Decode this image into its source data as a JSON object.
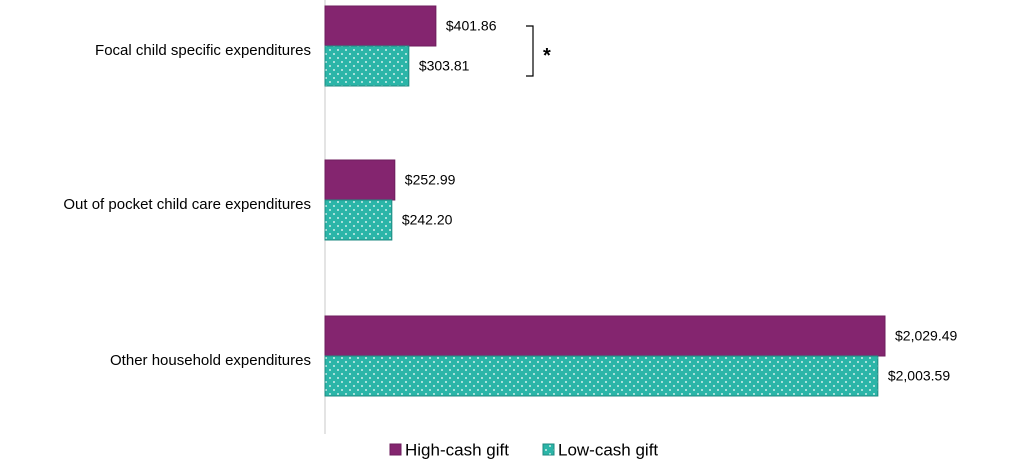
{
  "chart_data": {
    "type": "bar",
    "orientation": "horizontal",
    "categories": [
      "Focal child specific expenditures",
      "Out of pocket child care expenditures",
      "Other household expenditures"
    ],
    "series": [
      {
        "name": "High-cash gift",
        "color": "#84256f",
        "pattern": "solid",
        "values": [
          401.86,
          252.99,
          2029.49
        ],
        "labels": [
          "$401.86",
          "$252.99",
          "$2,029.49"
        ]
      },
      {
        "name": "Low-cash gift",
        "color": "#2bb5a8",
        "pattern": "dotted",
        "values": [
          303.81,
          242.2,
          2003.59
        ],
        "labels": [
          "$303.81",
          "$242.20",
          "$2,003.59"
        ]
      }
    ],
    "significance": [
      {
        "category_index": 0,
        "marker": "*"
      }
    ],
    "xlim": [
      0,
      2100
    ],
    "grid": false,
    "legend_position": "bottom"
  }
}
